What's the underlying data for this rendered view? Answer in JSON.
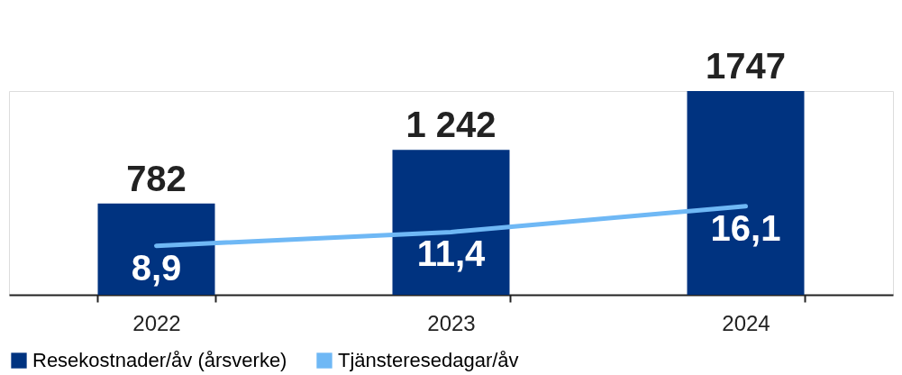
{
  "chart_data": {
    "type": "bar",
    "categories": [
      "2022",
      "2023",
      "2024"
    ],
    "series": [
      {
        "name": "Resekostnader/åv (årsverke)",
        "color": "#003380",
        "values": [
          782,
          1242,
          1747
        ],
        "value_labels": [
          "782",
          "1 242",
          "1747"
        ]
      },
      {
        "name": "Tjänsteresedagar/åv",
        "type": "line",
        "axis": "y2",
        "color": "#6fb8f5",
        "values": [
          8.9,
          11.4,
          16.1
        ],
        "value_labels": [
          "8,9",
          "11,4",
          "16,1"
        ]
      }
    ],
    "legend": "bottom",
    "grid": false,
    "tick_labels": "x"
  }
}
